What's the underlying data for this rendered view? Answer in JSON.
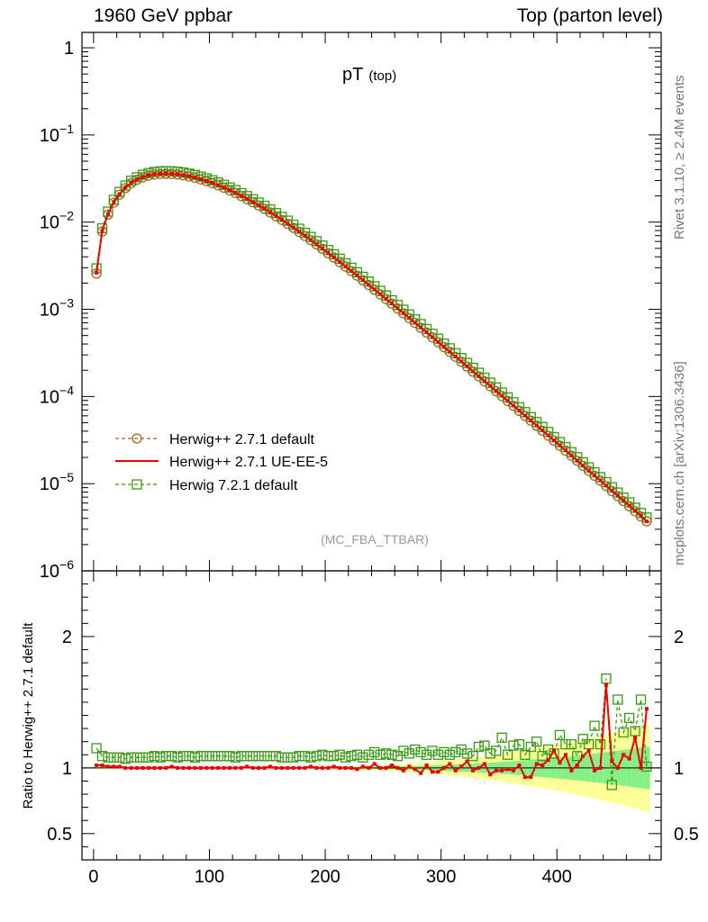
{
  "header": {
    "left": "1960 GeV ppbar",
    "right": "Top (parton level)"
  },
  "side_labels": {
    "rivet": "Rivet 3.1.10, ≥ 2.4M events",
    "mcplots": "mcplots.cern.ch [arXiv:1306.3436]"
  },
  "colors": {
    "herwigpp_default": "#b35a1f",
    "herwigpp_ueee5": "#ee0000",
    "herwig7_default": "#3a9a14",
    "band_yellow": "#ffff99",
    "band_green": "#88ee88"
  },
  "chart_data": [
    {
      "type": "line",
      "title": "pT",
      "title_sub": "(top)",
      "annotation": "(MC_FBA_TTBAR)",
      "xlim": [
        -10,
        490
      ],
      "ylim": [
        1e-06,
        1.5
      ],
      "yscale": "log",
      "y_ticks": [
        {
          "base": "1",
          "exp": ""
        },
        {
          "base": "10",
          "exp": "−1"
        },
        {
          "base": "10",
          "exp": "−2"
        },
        {
          "base": "10",
          "exp": "−3"
        },
        {
          "base": "10",
          "exp": "−4"
        },
        {
          "base": "10",
          "exp": "−5"
        },
        {
          "base": "10",
          "exp": "−6"
        }
      ],
      "legend_position": "lower-left",
      "legend": [
        "Herwig++ 2.7.1 default",
        "Herwig++ 2.7.1 UE-EE-5",
        "Herwig 7.2.1 default"
      ],
      "x": [
        2.5,
        7.5,
        12.5,
        17.5,
        22.5,
        27.5,
        32.5,
        37.5,
        42.5,
        47.5,
        52.5,
        57.5,
        62.5,
        67.5,
        72.5,
        77.5,
        82.5,
        87.5,
        92.5,
        97.5,
        102.5,
        107.5,
        112.5,
        117.5,
        122.5,
        127.5,
        132.5,
        137.5,
        142.5,
        147.5,
        152.5,
        157.5,
        162.5,
        167.5,
        172.5,
        177.5,
        182.5,
        187.5,
        192.5,
        197.5,
        202.5,
        207.5,
        212.5,
        217.5,
        222.5,
        227.5,
        232.5,
        237.5,
        242.5,
        247.5,
        252.5,
        257.5,
        262.5,
        267.5,
        272.5,
        277.5,
        282.5,
        287.5,
        292.5,
        297.5,
        302.5,
        307.5,
        312.5,
        317.5,
        322.5,
        327.5,
        332.5,
        337.5,
        342.5,
        347.5,
        352.5,
        357.5,
        362.5,
        367.5,
        372.5,
        377.5,
        382.5,
        387.5,
        392.5,
        397.5,
        402.5,
        407.5,
        412.5,
        417.5,
        422.5,
        427.5,
        432.5,
        437.5,
        442.5,
        447.5,
        452.5,
        457.5,
        462.5,
        467.5,
        472.5,
        477.5
      ],
      "series": [
        {
          "name": "Herwig++ 2.7.1 default",
          "style": "dashed-circle",
          "values": [
            0.00257,
            0.0078,
            0.0122,
            0.0167,
            0.0207,
            0.0246,
            0.0279,
            0.0306,
            0.0326,
            0.0341,
            0.0351,
            0.0356,
            0.0358,
            0.0356,
            0.0351,
            0.0344,
            0.0334,
            0.0323,
            0.0309,
            0.0295,
            0.028,
            0.0264,
            0.0248,
            0.0231,
            0.0216,
            0.0199,
            0.0184,
            0.0169,
            0.0155,
            0.0142,
            0.0129,
            0.0117,
            0.0106,
            0.00955,
            0.0086,
            0.00773,
            0.00693,
            0.0062,
            0.00554,
            0.00494,
            0.0044,
            0.00392,
            0.00348,
            0.00309,
            0.00274,
            0.00243,
            0.00215,
            0.0019,
            0.00168,
            0.00148,
            0.00131,
            0.00116,
            0.00102,
            0.000899,
            0.000793,
            0.000698,
            0.000615,
            0.000541,
            0.000476,
            0.000419,
            0.000368,
            0.000324,
            0.000285,
            0.00025,
            0.00022,
            0.000193,
            0.00017,
            0.000149,
            0.000131,
            0.000115,
            0.000101,
            8.88e-05,
            7.8e-05,
            6.84e-05,
            6e-05,
            5.27e-05,
            4.62e-05,
            4.05e-05,
            3.55e-05,
            3.11e-05,
            2.73e-05,
            2.39e-05,
            2.09e-05,
            1.83e-05,
            1.6e-05,
            1.4e-05,
            1.23e-05,
            1.08e-05,
            9.4e-06,
            8.2e-06,
            7.2e-06,
            6.3e-06,
            5.5e-06,
            4.8e-06,
            4.2e-06,
            3.7e-06
          ]
        },
        {
          "name": "Herwig++ 2.7.1 UE-EE-5",
          "style": "solid",
          "values": [
            0.00263,
            0.00797,
            0.0124,
            0.017,
            0.021,
            0.0249,
            0.0282,
            0.0309,
            0.0329,
            0.0344,
            0.0354,
            0.0359,
            0.036,
            0.0358,
            0.0354,
            0.0346,
            0.0337,
            0.0326,
            0.0311,
            0.0297,
            0.0282,
            0.0266,
            0.025,
            0.0233,
            0.0217,
            0.0201,
            0.0185,
            0.017,
            0.0156,
            0.0143,
            0.013,
            0.0118,
            0.0107,
            0.00962,
            0.00866,
            0.00779,
            0.00698,
            0.00625,
            0.00558,
            0.00498,
            0.00443,
            0.00395,
            0.00351,
            0.00311,
            0.00276,
            0.00245,
            0.00217,
            0.00191,
            0.00169,
            0.00149,
            0.00132,
            0.00117,
            0.00103,
            0.000906,
            0.000798,
            0.000703,
            0.00062,
            0.000545,
            0.00048,
            0.000422,
            0.000371,
            0.000326,
            0.000287,
            0.000252,
            0.000222,
            0.000194,
            0.000171,
            0.00015,
            0.000132,
            0.000116,
            0.000102,
            8.94e-05,
            7.85e-05,
            6.89e-05,
            6.04e-05,
            5.3e-05,
            4.65e-05,
            4.08e-05,
            3.58e-05,
            3.13e-05,
            2.75e-05,
            2.41e-05,
            2.11e-05,
            1.84e-05,
            1.61e-05,
            1.41e-05,
            1.24e-05,
            1.09e-05,
            9.5e-06,
            8.3e-06,
            7.3e-06,
            6.4e-06,
            5.6e-06,
            4.9e-06,
            4.3e-06,
            3.7e-06
          ]
        },
        {
          "name": "Herwig 7.2.1 default",
          "style": "dashed-square",
          "values": [
            0.00295,
            0.0085,
            0.0132,
            0.018,
            0.0222,
            0.0263,
            0.0298,
            0.0327,
            0.0349,
            0.0365,
            0.0376,
            0.0382,
            0.0385,
            0.0383,
            0.0378,
            0.037,
            0.036,
            0.0348,
            0.0333,
            0.0318,
            0.0302,
            0.0285,
            0.0268,
            0.025,
            0.0233,
            0.0215,
            0.0199,
            0.0183,
            0.0168,
            0.0154,
            0.014,
            0.0127,
            0.0115,
            0.0104,
            0.00935,
            0.00841,
            0.00754,
            0.00676,
            0.00604,
            0.00539,
            0.0048,
            0.00428,
            0.0038,
            0.00338,
            0.003,
            0.00266,
            0.00236,
            0.00208,
            0.00184,
            0.00163,
            0.00144,
            0.00127,
            0.00112,
            0.000988,
            0.000872,
            0.000767,
            0.000676,
            0.000595,
            0.000524,
            0.000461,
            0.000405,
            0.000357,
            0.000314,
            0.000276,
            0.000243,
            0.000213,
            0.000187,
            0.000164,
            0.000144,
            0.000127,
            0.000111,
            9.77e-05,
            8.58e-05,
            7.53e-05,
            6.61e-05,
            5.8e-05,
            5.09e-05,
            4.46e-05,
            3.91e-05,
            3.43e-05,
            3e-05,
            2.63e-05,
            2.3e-05,
            2.01e-05,
            1.76e-05,
            1.54e-05,
            1.35e-05,
            1.19e-05,
            1.04e-05,
            9.1e-06,
            7.9e-06,
            6.9e-06,
            6.1e-06,
            5.3e-06,
            4.6e-06,
            4.1e-06
          ]
        }
      ]
    },
    {
      "type": "line",
      "ylabel": "Ratio to Herwig++ 2.7.1 default",
      "xlim": [
        -10,
        490
      ],
      "ylim": [
        0.3,
        2.5
      ],
      "x_ticks": [
        "0",
        "100",
        "200",
        "300",
        "400"
      ],
      "y_ticks_left": [
        "0.5",
        "1",
        "2"
      ],
      "y_ticks_right": [
        "0.5",
        "1",
        "2"
      ],
      "x": [
        2.5,
        7.5,
        12.5,
        17.5,
        22.5,
        27.5,
        32.5,
        37.5,
        42.5,
        47.5,
        52.5,
        57.5,
        62.5,
        67.5,
        72.5,
        77.5,
        82.5,
        87.5,
        92.5,
        97.5,
        102.5,
        107.5,
        112.5,
        117.5,
        122.5,
        127.5,
        132.5,
        137.5,
        142.5,
        147.5,
        152.5,
        157.5,
        162.5,
        167.5,
        172.5,
        177.5,
        182.5,
        187.5,
        192.5,
        197.5,
        202.5,
        207.5,
        212.5,
        217.5,
        222.5,
        227.5,
        232.5,
        237.5,
        242.5,
        247.5,
        252.5,
        257.5,
        262.5,
        267.5,
        272.5,
        277.5,
        282.5,
        287.5,
        292.5,
        297.5,
        302.5,
        307.5,
        312.5,
        317.5,
        322.5,
        327.5,
        332.5,
        337.5,
        342.5,
        347.5,
        352.5,
        357.5,
        362.5,
        367.5,
        372.5,
        377.5,
        382.5,
        387.5,
        392.5,
        397.5,
        402.5,
        407.5,
        412.5,
        417.5,
        422.5,
        427.5,
        432.5,
        437.5,
        442.5,
        447.5,
        452.5,
        457.5,
        462.5,
        467.5,
        472.5,
        477.5
      ],
      "series": [
        {
          "name": "Herwig++ 2.7.1 UE-EE-5",
          "style": "solid",
          "values": [
            1.02,
            1.02,
            1.01,
            1.01,
            1.01,
            1.0,
            1.0,
            1.0,
            1.0,
            1.0,
            1.0,
            1.0,
            1.0,
            1.01,
            1.0,
            1.0,
            1.0,
            1.0,
            1.0,
            1.0,
            1.0,
            1.0,
            1.0,
            1.0,
            1.0,
            1.0,
            1.01,
            1.0,
            1.0,
            1.0,
            1.01,
            1.0,
            1.0,
            1.0,
            1.0,
            1.0,
            1.0,
            1.01,
            1.0,
            1.0,
            1.0,
            1.01,
            1.0,
            1.0,
            1.0,
            0.99,
            1.01,
            1.0,
            1.03,
            1.0,
            1.0,
            1.02,
            1.0,
            0.98,
            1.01,
            0.99,
            0.96,
            1.02,
            0.97,
            0.97,
            1.0,
            1.03,
            0.98,
            1.01,
            1.05,
            0.98,
            1.0,
            1.03,
            0.95,
            0.98,
            0.98,
            0.99,
            0.98,
            1.02,
            0.93,
            0.93,
            1.03,
            1.02,
            1.06,
            1.13,
            1.04,
            1.1,
            0.98,
            1.02,
            1.09,
            1.13,
            0.98,
            1.0,
            1.63,
            1.05,
            1.0,
            1.1,
            1.07,
            1.23,
            1.0,
            1.45
          ]
        },
        {
          "name": "Herwig 7.2.1 default",
          "style": "dashed-square",
          "values": [
            1.15,
            1.09,
            1.08,
            1.08,
            1.08,
            1.07,
            1.08,
            1.08,
            1.08,
            1.08,
            1.09,
            1.08,
            1.09,
            1.09,
            1.08,
            1.09,
            1.09,
            1.08,
            1.09,
            1.09,
            1.09,
            1.09,
            1.09,
            1.09,
            1.08,
            1.09,
            1.09,
            1.09,
            1.09,
            1.09,
            1.09,
            1.09,
            1.08,
            1.08,
            1.08,
            1.09,
            1.09,
            1.08,
            1.09,
            1.1,
            1.09,
            1.09,
            1.1,
            1.08,
            1.09,
            1.1,
            1.08,
            1.1,
            1.12,
            1.1,
            1.11,
            1.1,
            1.09,
            1.13,
            1.11,
            1.14,
            1.12,
            1.1,
            1.13,
            1.1,
            1.12,
            1.1,
            1.12,
            1.14,
            1.11,
            1.09,
            1.16,
            1.17,
            1.11,
            1.13,
            1.23,
            1.1,
            1.17,
            1.18,
            1.1,
            1.16,
            1.2,
            1.09,
            1.14,
            1.11,
            1.25,
            1.18,
            1.18,
            1.09,
            1.22,
            1.18,
            1.32,
            1.18,
            1.68,
            0.87,
            1.52,
            1.27,
            1.38,
            1.28,
            1.52,
            1.01
          ]
        }
      ]
    }
  ]
}
